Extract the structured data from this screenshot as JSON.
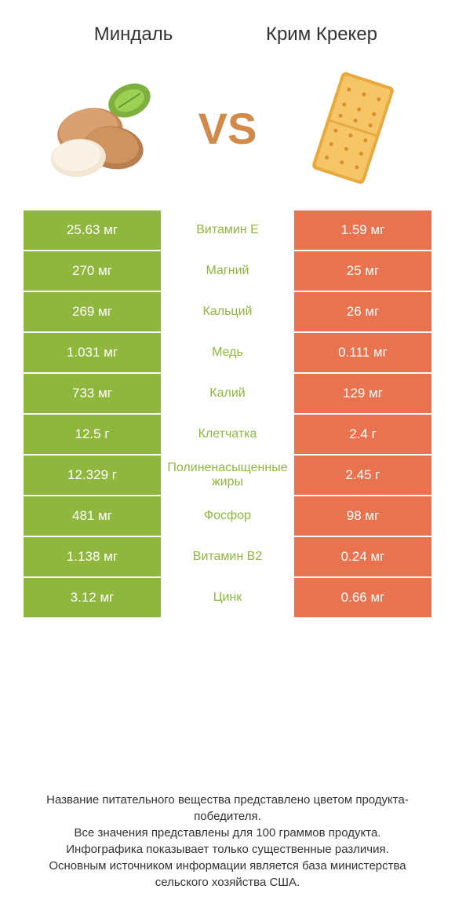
{
  "header": {
    "left_title": "Миндаль",
    "right_title": "Крим Крекер"
  },
  "vs_label": "VS",
  "colors": {
    "left_bg": "#8fb73e",
    "right_bg": "#e8734e",
    "mid_text_left": "#8fb73e",
    "mid_text_right": "#e8734e"
  },
  "rows": [
    {
      "left": "25.63 мг",
      "label": "Витамин E",
      "right": "1.59 мг",
      "winner": "left"
    },
    {
      "left": "270 мг",
      "label": "Магний",
      "right": "25 мг",
      "winner": "left"
    },
    {
      "left": "269 мг",
      "label": "Кальций",
      "right": "26 мг",
      "winner": "left"
    },
    {
      "left": "1.031 мг",
      "label": "Медь",
      "right": "0.111 мг",
      "winner": "left"
    },
    {
      "left": "733 мг",
      "label": "Калий",
      "right": "129 мг",
      "winner": "left"
    },
    {
      "left": "12.5 г",
      "label": "Клетчатка",
      "right": "2.4 г",
      "winner": "left"
    },
    {
      "left": "12.329 г",
      "label": "Полиненасыщенные жиры",
      "right": "2.45 г",
      "winner": "left"
    },
    {
      "left": "481 мг",
      "label": "Фосфор",
      "right": "98 мг",
      "winner": "left"
    },
    {
      "left": "1.138 мг",
      "label": "Витамин B2",
      "right": "0.24 мг",
      "winner": "left"
    },
    {
      "left": "3.12 мг",
      "label": "Цинк",
      "right": "0.66 мг",
      "winner": "left"
    }
  ],
  "footnote": {
    "l1": "Название питательного вещества представлено цветом продукта-победителя.",
    "l2": "Все значения представлены для 100 граммов продукта.",
    "l3": "Инфографика показывает только существенные различия.",
    "l4": "Основным источником информации является база министерства сельского хозяйства США."
  }
}
